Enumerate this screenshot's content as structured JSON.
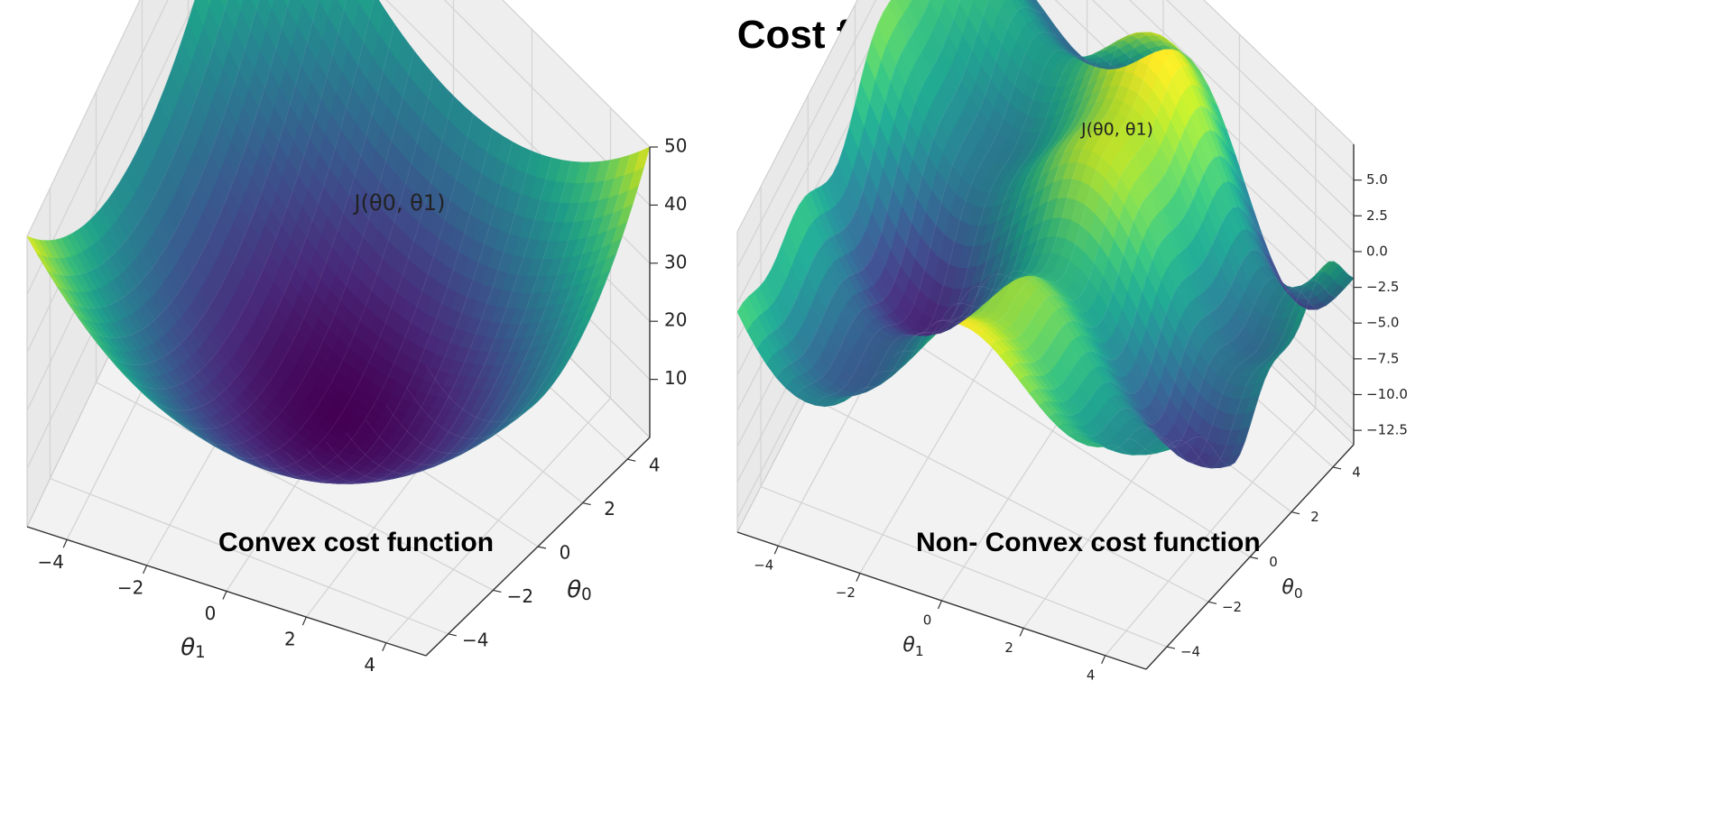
{
  "title": "Cost function",
  "colormap": "viridis",
  "pane_colors": {
    "pane": "#f2f2f2",
    "grid": "#d4d4d4",
    "edge": "#c9c9c9",
    "axis": "#333333"
  },
  "chart_data": [
    {
      "type": "surface",
      "subtitle": "Convex cost function",
      "zlabel": "J(θ0, θ1)",
      "xlabel": "θ1",
      "ylabel": "θ0",
      "xlim": [
        -5,
        5
      ],
      "ylim": [
        -5,
        5
      ],
      "zlim": [
        0,
        50
      ],
      "xticks": [
        "−4",
        "−2",
        "0",
        "2",
        "4"
      ],
      "yticks": [
        "−4",
        "−2",
        "0",
        "2",
        "4"
      ],
      "zticks": [
        "10",
        "20",
        "30",
        "40",
        "50"
      ],
      "function": "theta0^2 + theta1^2",
      "grid": true
    },
    {
      "type": "surface",
      "subtitle": "Non- Convex cost function",
      "zlabel": "J(θ0, θ1)",
      "xlabel": "θ1",
      "ylabel": "θ0",
      "xlim": [
        -5,
        5
      ],
      "ylim": [
        -5,
        5
      ],
      "zlim": [
        -13.5,
        7.5
      ],
      "xticks": [
        "−4",
        "−2",
        "0",
        "2",
        "4"
      ],
      "yticks": [
        "−4",
        "−2",
        "0",
        "2",
        "4"
      ],
      "zticks": [
        "−12.5",
        "−10.0",
        "−7.5",
        "−5.0",
        "−2.5",
        "0.0",
        "2.5",
        "5.0"
      ],
      "function": "non-convex wavy surface",
      "grid": true
    }
  ]
}
